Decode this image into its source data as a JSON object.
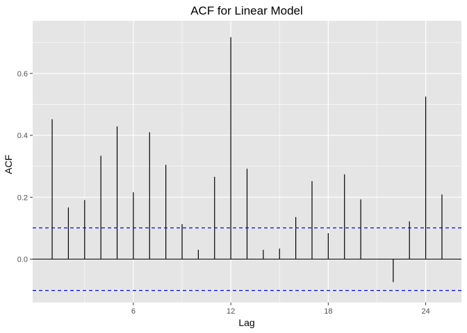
{
  "chart_data": {
    "type": "bar",
    "title": "ACF for Linear Model",
    "xlabel": "Lag",
    "ylabel": "ACF",
    "x": [
      1,
      2,
      3,
      4,
      5,
      6,
      7,
      8,
      9,
      10,
      11,
      12,
      13,
      14,
      15,
      16,
      17,
      18,
      19,
      20,
      21,
      22,
      23,
      24,
      25
    ],
    "values": [
      0.452,
      0.167,
      0.191,
      0.334,
      0.429,
      0.216,
      0.41,
      0.305,
      0.113,
      0.03,
      0.266,
      0.717,
      0.292,
      0.03,
      0.034,
      0.136,
      0.252,
      0.084,
      0.274,
      0.193,
      0.0,
      -0.074,
      0.122,
      0.525,
      0.209
    ],
    "xlim": [
      -0.2,
      26.2
    ],
    "ylim": [
      -0.14,
      0.77
    ],
    "x_ticks": [
      6,
      12,
      18,
      24
    ],
    "x_tick_labels": [
      "6",
      "12",
      "18",
      "24"
    ],
    "y_ticks": [
      0.0,
      0.2,
      0.4,
      0.6
    ],
    "y_tick_labels": [
      "0.0",
      "0.2",
      "0.4",
      "0.6"
    ],
    "confidence_bounds": [
      0.101,
      -0.101
    ],
    "colors": {
      "panel_background": "#e5e5e5",
      "grid": "#ffffff",
      "bars": "#000000",
      "confidence_line": "#0000ff"
    }
  }
}
